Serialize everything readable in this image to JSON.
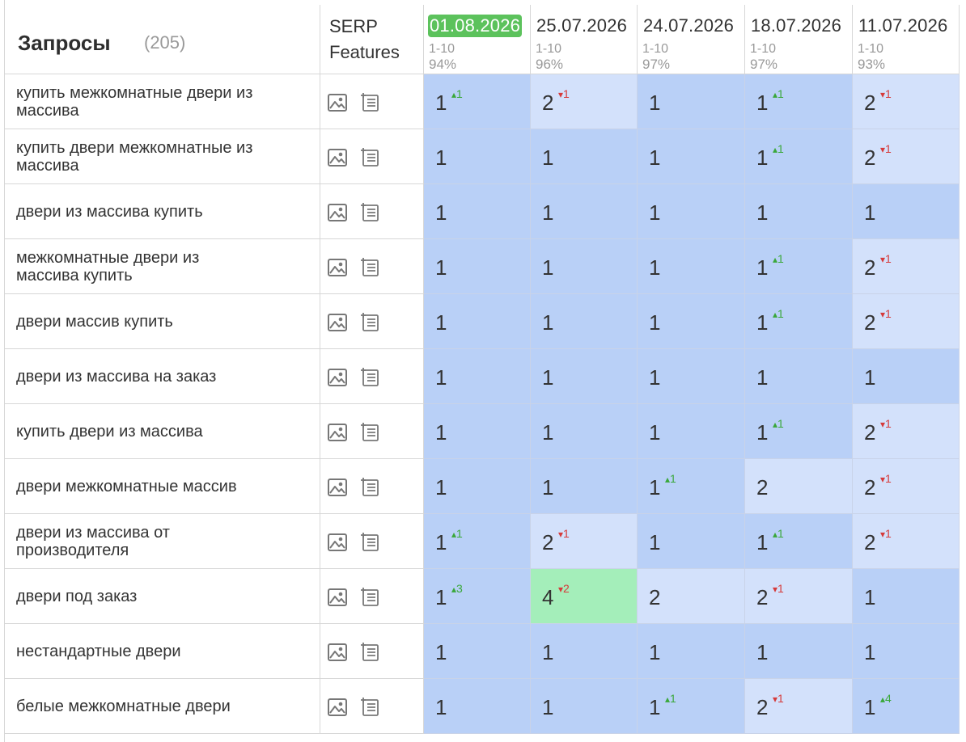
{
  "header": {
    "queries_title": "Запросы",
    "queries_count": "(205)",
    "serp_line1": "SERP",
    "serp_line2": "Features"
  },
  "dates": [
    {
      "date": "01.08.2026",
      "range": "1-10",
      "pct": "94%",
      "highlight": true
    },
    {
      "date": "25.07.2026",
      "range": "1-10",
      "pct": "96%",
      "highlight": false
    },
    {
      "date": "24.07.2026",
      "range": "1-10",
      "pct": "97%",
      "highlight": false
    },
    {
      "date": "18.07.2026",
      "range": "1-10",
      "pct": "97%",
      "highlight": false
    },
    {
      "date": "11.07.2026",
      "range": "1-10",
      "pct": "93%",
      "highlight": false
    }
  ],
  "rows": [
    {
      "query": "купить межкомнатные двери из массива",
      "cells": [
        {
          "v": "1",
          "d": "1",
          "dir": "up"
        },
        {
          "v": "2",
          "d": "1",
          "dir": "dn"
        },
        {
          "v": "1"
        },
        {
          "v": "1",
          "d": "1",
          "dir": "up"
        },
        {
          "v": "2",
          "d": "1",
          "dir": "dn"
        }
      ]
    },
    {
      "query": "купить двери межкомнатные из массива",
      "cells": [
        {
          "v": "1"
        },
        {
          "v": "1"
        },
        {
          "v": "1"
        },
        {
          "v": "1",
          "d": "1",
          "dir": "up"
        },
        {
          "v": "2",
          "d": "1",
          "dir": "dn"
        }
      ]
    },
    {
      "query": "двери из массива купить",
      "cells": [
        {
          "v": "1"
        },
        {
          "v": "1"
        },
        {
          "v": "1"
        },
        {
          "v": "1"
        },
        {
          "v": "1"
        }
      ]
    },
    {
      "query": "межкомнатные двери из массива купить",
      "cells": [
        {
          "v": "1"
        },
        {
          "v": "1"
        },
        {
          "v": "1"
        },
        {
          "v": "1",
          "d": "1",
          "dir": "up"
        },
        {
          "v": "2",
          "d": "1",
          "dir": "dn"
        }
      ]
    },
    {
      "query": "двери массив купить",
      "cells": [
        {
          "v": "1"
        },
        {
          "v": "1"
        },
        {
          "v": "1"
        },
        {
          "v": "1",
          "d": "1",
          "dir": "up"
        },
        {
          "v": "2",
          "d": "1",
          "dir": "dn"
        }
      ]
    },
    {
      "query": "двери из массива на заказ",
      "cells": [
        {
          "v": "1"
        },
        {
          "v": "1"
        },
        {
          "v": "1"
        },
        {
          "v": "1"
        },
        {
          "v": "1"
        }
      ]
    },
    {
      "query": "купить двери из массива",
      "cells": [
        {
          "v": "1"
        },
        {
          "v": "1"
        },
        {
          "v": "1"
        },
        {
          "v": "1",
          "d": "1",
          "dir": "up"
        },
        {
          "v": "2",
          "d": "1",
          "dir": "dn"
        }
      ]
    },
    {
      "query": "двери межкомнатные массив",
      "cells": [
        {
          "v": "1"
        },
        {
          "v": "1"
        },
        {
          "v": "1",
          "d": "1",
          "dir": "up"
        },
        {
          "v": "2"
        },
        {
          "v": "2",
          "d": "1",
          "dir": "dn"
        }
      ]
    },
    {
      "query": "двери из массива от производителя",
      "cells": [
        {
          "v": "1",
          "d": "1",
          "dir": "up"
        },
        {
          "v": "2",
          "d": "1",
          "dir": "dn"
        },
        {
          "v": "1"
        },
        {
          "v": "1",
          "d": "1",
          "dir": "up"
        },
        {
          "v": "2",
          "d": "1",
          "dir": "dn"
        }
      ]
    },
    {
      "query": "двери под заказ",
      "cells": [
        {
          "v": "1",
          "d": "3",
          "dir": "up"
        },
        {
          "v": "4",
          "d": "2",
          "dir": "dn"
        },
        {
          "v": "2"
        },
        {
          "v": "2",
          "d": "1",
          "dir": "dn"
        },
        {
          "v": "1"
        }
      ]
    },
    {
      "query": "нестандартные двери",
      "cells": [
        {
          "v": "1"
        },
        {
          "v": "1"
        },
        {
          "v": "1"
        },
        {
          "v": "1"
        },
        {
          "v": "1"
        }
      ]
    },
    {
      "query": "белые межкомнатные двери",
      "cells": [
        {
          "v": "1"
        },
        {
          "v": "1"
        },
        {
          "v": "1",
          "d": "1",
          "dir": "up"
        },
        {
          "v": "2",
          "d": "1",
          "dir": "dn"
        },
        {
          "v": "1",
          "d": "4",
          "dir": "up"
        }
      ]
    }
  ],
  "colors": {
    "pos1": "#b9d0f7",
    "pos2": "#d3e1fb",
    "pos4": "#a4eeba",
    "up": "#3aa83a",
    "down": "#d63a3a",
    "date_highlight": "#5cc25c"
  },
  "icons": [
    "image-icon",
    "featured-snippet-icon",
    "triangle-up-icon",
    "triangle-down-icon"
  ]
}
